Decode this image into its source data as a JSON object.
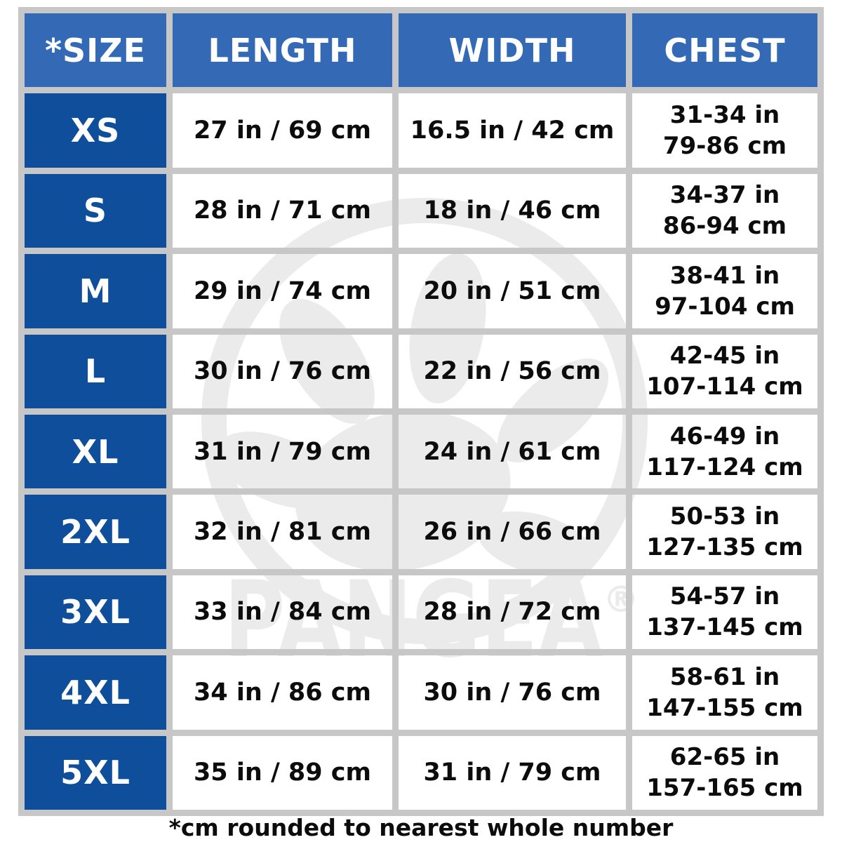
{
  "colors": {
    "header_blue": "#3369b5",
    "size_column_blue": "#0f4e9b",
    "grid_line_gray": "#c7c7c7",
    "watermark_gray": "#ebebeb",
    "text_black": "#0c0c0c",
    "header_text_white": "#ffffff"
  },
  "table": {
    "headers": [
      "*SIZE",
      "LENGTH",
      "WIDTH",
      "CHEST"
    ],
    "rows": [
      {
        "size": "XS",
        "length": "27 in / 69 cm",
        "width": "16.5 in / 42 cm",
        "chest_in": "31-34 in",
        "chest_cm": "79-86 cm"
      },
      {
        "size": "S",
        "length": "28 in / 71 cm",
        "width": "18 in / 46 cm",
        "chest_in": "34-37 in",
        "chest_cm": "86-94 cm"
      },
      {
        "size": "M",
        "length": "29 in / 74 cm",
        "width": "20 in / 51 cm",
        "chest_in": "38-41 in",
        "chest_cm": "97-104 cm"
      },
      {
        "size": "L",
        "length": "30 in / 76 cm",
        "width": "22 in / 56 cm",
        "chest_in": "42-45 in",
        "chest_cm": "107-114 cm"
      },
      {
        "size": "XL",
        "length": "31 in / 79 cm",
        "width": "24 in / 61 cm",
        "chest_in": "46-49 in",
        "chest_cm": "117-124 cm"
      },
      {
        "size": "2XL",
        "length": "32 in / 81 cm",
        "width": "26 in / 66 cm",
        "chest_in": "50-53 in",
        "chest_cm": "127-135 cm"
      },
      {
        "size": "3XL",
        "length": "33 in / 84 cm",
        "width": "28 in / 72 cm",
        "chest_in": "54-57 in",
        "chest_cm": "137-145 cm"
      },
      {
        "size": "4XL",
        "length": "34 in / 86 cm",
        "width": "30 in / 76 cm",
        "chest_in": "58-61 in",
        "chest_cm": "147-155 cm"
      },
      {
        "size": "5XL",
        "length": "35 in / 89 cm",
        "width": "31 in / 79 cm",
        "chest_in": "62-65 in",
        "chest_cm": "157-165 cm"
      }
    ]
  },
  "watermark": {
    "brand": "PANGEA",
    "registered": "®"
  },
  "footnote": "*cm rounded to nearest whole number",
  "chart_data": {
    "type": "table",
    "title": "Size chart",
    "columns": [
      "*SIZE",
      "LENGTH",
      "WIDTH",
      "CHEST"
    ],
    "rows": [
      [
        "XS",
        "27 in / 69 cm",
        "16.5 in / 42 cm",
        "31-34 in / 79-86 cm"
      ],
      [
        "S",
        "28 in / 71 cm",
        "18 in / 46 cm",
        "34-37 in / 86-94 cm"
      ],
      [
        "M",
        "29 in / 74 cm",
        "20 in / 51 cm",
        "38-41 in / 97-104 cm"
      ],
      [
        "L",
        "30 in / 76 cm",
        "22 in / 56 cm",
        "42-45 in / 107-114 cm"
      ],
      [
        "XL",
        "31 in / 79 cm",
        "24 in / 61 cm",
        "46-49 in / 117-124 cm"
      ],
      [
        "2XL",
        "32 in / 81 cm",
        "26 in / 66 cm",
        "50-53 in / 127-135 cm"
      ],
      [
        "3XL",
        "33 in / 84 cm",
        "28 in / 72 cm",
        "54-57 in / 137-145 cm"
      ],
      [
        "4XL",
        "34 in / 86 cm",
        "30 in / 76 cm",
        "58-61 in / 147-155 cm"
      ],
      [
        "5XL",
        "35 in / 89 cm",
        "31 in / 79 cm",
        "62-65 in / 157-165 cm"
      ]
    ],
    "footnote": "*cm rounded to nearest whole number",
    "legend_position": "none",
    "grid": true
  }
}
